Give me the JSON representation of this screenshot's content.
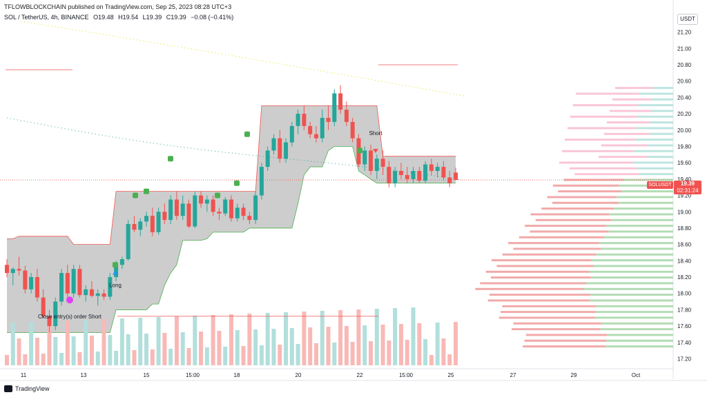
{
  "header": {
    "publisher": "TFLOWBLOCKCHAIN published on TradingView.com, Sep 25, 2023 08:28 UTC+3",
    "symbol": "SOL / TetherUS, 4h, BINANCE",
    "open": "O19.48",
    "high": "H19.54",
    "low": "L19.39",
    "close": "C19.39",
    "change": "−0.08 (−0.41%)"
  },
  "currency_button": "USDT",
  "price_badge": {
    "symbol": "SOLUSDT",
    "price": "19.39",
    "countdown": "02:31:24"
  },
  "annotations": {
    "long": "Long",
    "short": "Short",
    "close_entry": "Close entry(s) order Short"
  },
  "footer": {
    "brand": "TradingView"
  },
  "colors": {
    "up": "#26a69a",
    "down": "#ef5350",
    "cloud": "#c8c8c8",
    "vol_up": "#b2dfdb",
    "vol_down": "#f8b9b6",
    "signal": "#4caf50"
  },
  "chart_data": {
    "type": "candlestick",
    "y_axis_ticks": [
      "21.20",
      "21.00",
      "20.80",
      "20.60",
      "20.40",
      "20.20",
      "20.00",
      "19.80",
      "19.60",
      "19.40",
      "19.20",
      "19.00",
      "18.80",
      "18.60",
      "18.40",
      "18.20",
      "18.00",
      "17.80",
      "17.60",
      "17.40",
      "17.20"
    ],
    "x_axis_ticks": [
      "11",
      "13",
      "15",
      "15:00",
      "18",
      "20",
      "22",
      "15:00",
      "25",
      "27",
      "29",
      "Oct"
    ],
    "ylim": [
      17.12,
      21.34
    ],
    "candles": [
      [
        18.35,
        18.42,
        18.2,
        18.25
      ],
      [
        18.25,
        18.32,
        18.1,
        18.3
      ],
      [
        18.3,
        18.45,
        18.22,
        18.28
      ],
      [
        18.28,
        18.34,
        18.0,
        18.05
      ],
      [
        18.05,
        18.25,
        18.0,
        18.2
      ],
      [
        18.2,
        18.3,
        17.9,
        17.95
      ],
      [
        17.95,
        18.05,
        17.7,
        17.72
      ],
      [
        17.72,
        17.8,
        17.52,
        17.6
      ],
      [
        17.6,
        17.95,
        17.55,
        17.9
      ],
      [
        17.9,
        18.3,
        17.85,
        18.25
      ],
      [
        18.25,
        18.35,
        17.95,
        18.0
      ],
      [
        18.0,
        18.35,
        17.95,
        18.3
      ],
      [
        18.3,
        18.35,
        17.95,
        17.98
      ],
      [
        17.98,
        18.1,
        17.9,
        18.05
      ],
      [
        18.05,
        18.15,
        17.95,
        17.97
      ],
      [
        17.97,
        18.05,
        17.85,
        18.0
      ],
      [
        18.0,
        18.05,
        17.92,
        17.96
      ],
      [
        17.96,
        18.25,
        17.92,
        18.2
      ],
      [
        18.2,
        18.4,
        18.15,
        18.35
      ],
      [
        18.35,
        18.45,
        18.3,
        18.42
      ],
      [
        18.42,
        18.9,
        18.4,
        18.85
      ],
      [
        18.85,
        18.95,
        18.75,
        18.78
      ],
      [
        18.78,
        18.92,
        18.7,
        18.88
      ],
      [
        18.88,
        19.0,
        18.82,
        18.95
      ],
      [
        18.95,
        19.05,
        18.7,
        18.75
      ],
      [
        18.75,
        19.05,
        18.72,
        19.0
      ],
      [
        19.0,
        19.1,
        18.85,
        18.9
      ],
      [
        18.9,
        19.2,
        18.85,
        19.15
      ],
      [
        19.15,
        19.25,
        18.9,
        18.95
      ],
      [
        18.95,
        19.2,
        18.9,
        19.1
      ],
      [
        19.1,
        19.15,
        18.8,
        18.82
      ],
      [
        18.82,
        19.25,
        18.8,
        19.2
      ],
      [
        19.2,
        19.25,
        19.05,
        19.1
      ],
      [
        19.1,
        19.2,
        19.0,
        19.15
      ],
      [
        19.15,
        19.2,
        18.95,
        19.0
      ],
      [
        19.0,
        19.05,
        18.9,
        18.98
      ],
      [
        18.98,
        19.18,
        18.95,
        19.15
      ],
      [
        19.15,
        19.2,
        18.88,
        18.92
      ],
      [
        18.92,
        19.1,
        18.88,
        19.05
      ],
      [
        19.05,
        19.1,
        18.9,
        18.95
      ],
      [
        18.95,
        19.0,
        18.85,
        18.9
      ],
      [
        18.9,
        19.25,
        18.85,
        19.2
      ],
      [
        19.2,
        19.6,
        19.15,
        19.55
      ],
      [
        19.55,
        19.8,
        19.5,
        19.75
      ],
      [
        19.75,
        19.95,
        19.7,
        19.9
      ],
      [
        19.9,
        20.0,
        19.6,
        19.65
      ],
      [
        19.65,
        19.9,
        19.6,
        19.85
      ],
      [
        19.85,
        20.1,
        19.8,
        20.05
      ],
      [
        20.05,
        20.25,
        19.95,
        20.2
      ],
      [
        20.2,
        20.3,
        20.0,
        20.05
      ],
      [
        20.05,
        20.1,
        19.9,
        19.95
      ],
      [
        19.95,
        20.05,
        19.85,
        19.9
      ],
      [
        19.9,
        20.25,
        19.85,
        20.15
      ],
      [
        20.15,
        20.3,
        20.0,
        20.1
      ],
      [
        20.1,
        20.5,
        20.05,
        20.45
      ],
      [
        20.45,
        20.55,
        20.2,
        20.25
      ],
      [
        20.25,
        20.35,
        20.05,
        20.1
      ],
      [
        20.1,
        20.15,
        19.85,
        19.9
      ],
      [
        19.9,
        19.95,
        19.55,
        19.58
      ],
      [
        19.58,
        19.8,
        19.5,
        19.75
      ],
      [
        19.75,
        19.82,
        19.45,
        19.5
      ],
      [
        19.5,
        19.7,
        19.4,
        19.65
      ],
      [
        19.65,
        19.75,
        19.45,
        19.55
      ],
      [
        19.55,
        19.62,
        19.3,
        19.35
      ],
      [
        19.35,
        19.55,
        19.3,
        19.5
      ],
      [
        19.5,
        19.6,
        19.4,
        19.45
      ],
      [
        19.45,
        19.55,
        19.35,
        19.4
      ],
      [
        19.4,
        19.55,
        19.35,
        19.5
      ],
      [
        19.5,
        19.55,
        19.35,
        19.38
      ],
      [
        19.38,
        19.62,
        19.35,
        19.58
      ],
      [
        19.58,
        19.65,
        19.45,
        19.5
      ],
      [
        19.5,
        19.6,
        19.42,
        19.55
      ],
      [
        19.55,
        19.62,
        19.38,
        19.42
      ],
      [
        19.42,
        19.5,
        19.3,
        19.35
      ],
      [
        19.48,
        19.54,
        19.39,
        19.39
      ]
    ],
    "volume_profile_note": "horizontal volume profile on right side",
    "current_price": 19.39
  }
}
